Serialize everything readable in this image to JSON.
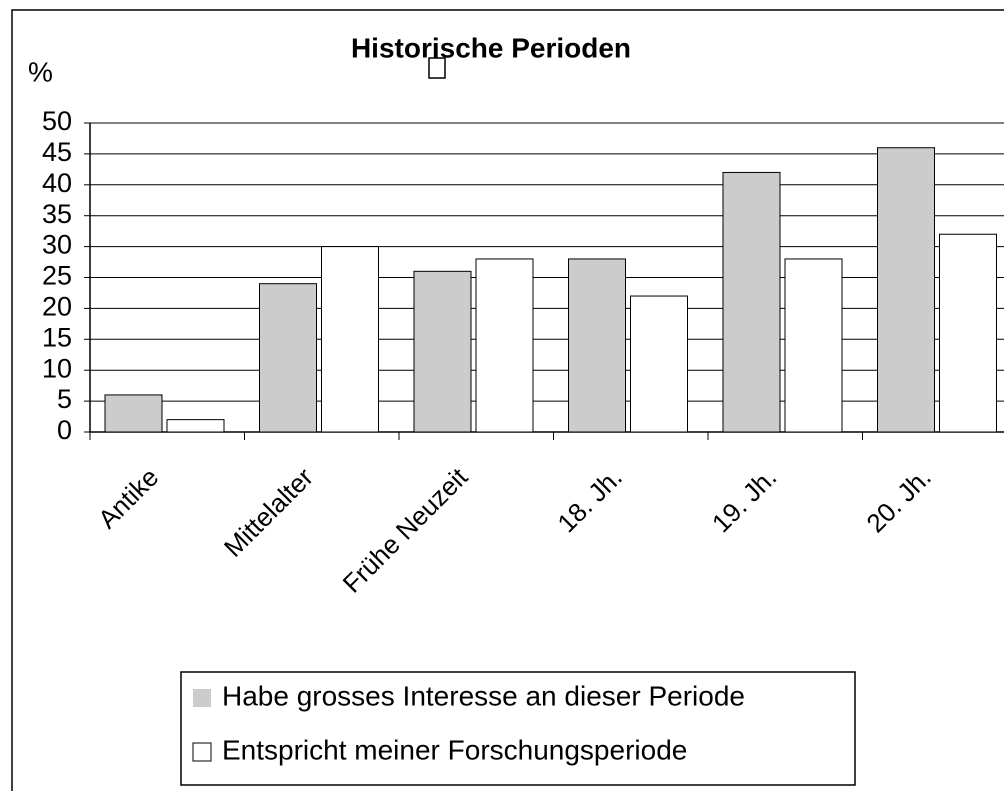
{
  "chart_data": {
    "type": "bar",
    "title": "Historische Perioden",
    "y_label": "%",
    "categories": [
      "Antike",
      "Mittelalter",
      "Frühe Neuzeit",
      "18. Jh.",
      "19. Jh.",
      "20. Jh."
    ],
    "series": [
      {
        "name": "Habe grosses Interesse an dieser Periode",
        "color": "#cccccc",
        "values": [
          6,
          24,
          26,
          28,
          42,
          46
        ]
      },
      {
        "name": "Entspricht meiner Forschungsperiode",
        "color": "#ffffff",
        "values": [
          2,
          30,
          28,
          22,
          28,
          32
        ]
      }
    ],
    "ylim": [
      0,
      50
    ],
    "yticks": [
      0,
      5,
      10,
      15,
      20,
      25,
      30,
      35,
      40,
      45,
      50
    ],
    "grid": true
  }
}
